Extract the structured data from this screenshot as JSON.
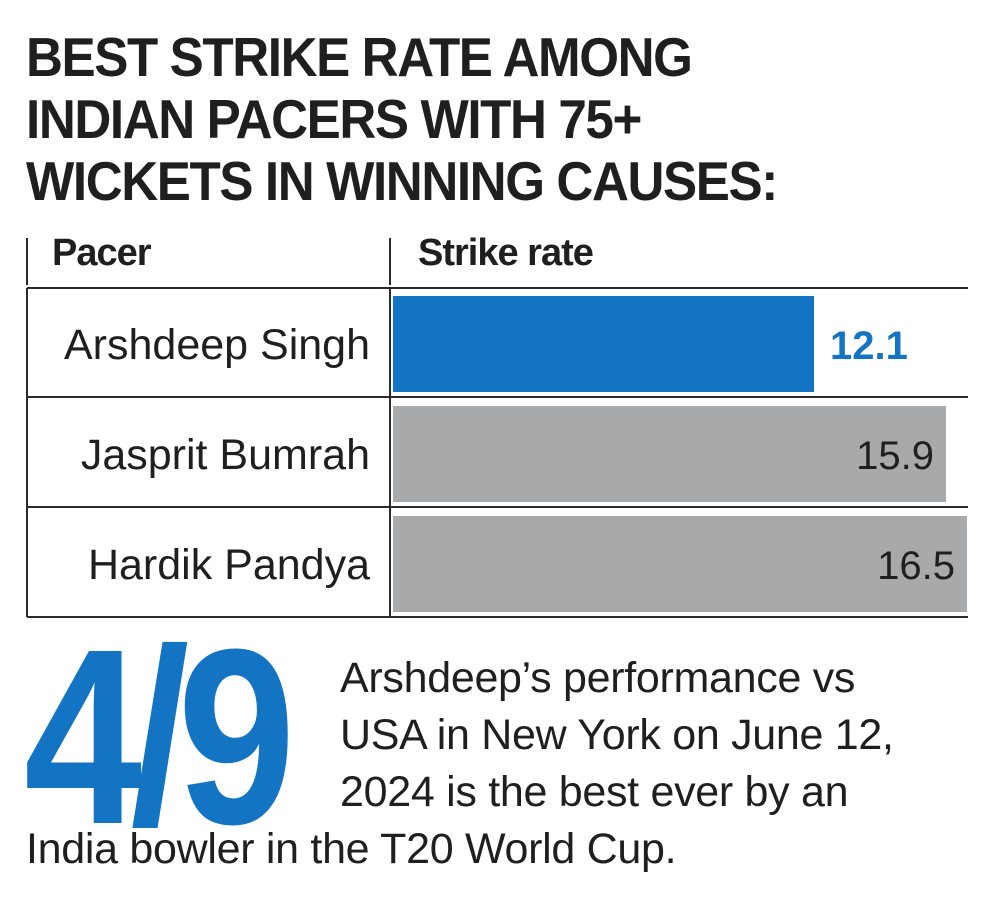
{
  "title_lines": [
    "BEST STRIKE RATE AMONG",
    "INDIAN PACERS WITH 75+",
    "WICKETS IN WINNING CAUSES:"
  ],
  "table": {
    "col_pacer": "Pacer",
    "col_strike_rate": "Strike rate"
  },
  "chart_data": {
    "type": "bar",
    "orientation": "horizontal",
    "title": "BEST STRIKE RATE AMONG INDIAN PACERS WITH 75+ WICKETS IN WINNING CAUSES:",
    "categories": [
      "Arshdeep Singh",
      "Jasprit Bumrah",
      "Hardik Pandya"
    ],
    "values": [
      12.1,
      15.9,
      16.5
    ],
    "value_labels": [
      "12.1",
      "15.9",
      "16.5"
    ],
    "xlabel": "Strike rate",
    "ylabel": "Pacer",
    "highlight_color": "#1474c4",
    "bar_color": "#a8a9ab",
    "grid": false
  },
  "callout": {
    "stat": "4/9",
    "lines": [
      "Arshdeep’s performance vs",
      "USA in New York on June 12,",
      "2024 is the best ever by an",
      "India bowler in the T20 World Cup."
    ]
  }
}
